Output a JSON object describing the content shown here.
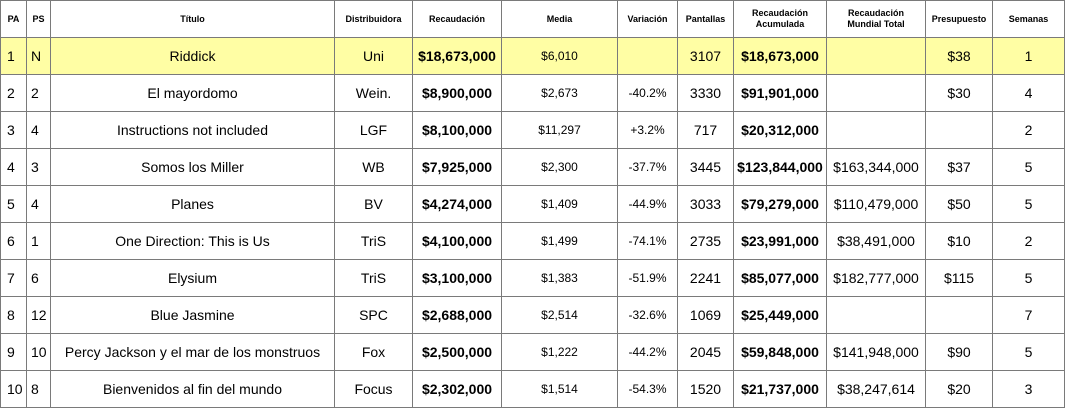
{
  "headers": {
    "pa": "PA",
    "ps": "PS",
    "titulo": "Título",
    "distribuidora": "Distribuidora",
    "recaudacion": "Recaudación",
    "media": "Media",
    "variacion": "Variación",
    "pantallas": "Pantallas",
    "acumulada_line1": "Recaudación",
    "acumulada_line2": "Acumulada",
    "mundial_line1": "Recaudación",
    "mundial_line2": "Mundial Total",
    "presupuesto": "Presupuesto",
    "semanas": "Semanas"
  },
  "rows": [
    {
      "pa": "1",
      "ps": "N",
      "titulo": "Riddick",
      "distribuidora": "Uni",
      "recaudacion": "$18,673,000",
      "media": "$6,010",
      "variacion": "",
      "pantallas": "3107",
      "acumulada": "$18,673,000",
      "mundial": "",
      "presupuesto": "$38",
      "semanas": "1"
    },
    {
      "pa": "2",
      "ps": "2",
      "titulo": "El mayordomo",
      "distribuidora": "Wein.",
      "recaudacion": "$8,900,000",
      "media": "$2,673",
      "variacion": "-40.2%",
      "pantallas": "3330",
      "acumulada": "$91,901,000",
      "mundial": "",
      "presupuesto": "$30",
      "semanas": "4"
    },
    {
      "pa": "3",
      "ps": "4",
      "titulo": "Instructions not included",
      "distribuidora": "LGF",
      "recaudacion": "$8,100,000",
      "media": "$11,297",
      "variacion": "+3.2%",
      "pantallas": "717",
      "acumulada": "$20,312,000",
      "mundial": "",
      "presupuesto": "",
      "semanas": "2"
    },
    {
      "pa": "4",
      "ps": "3",
      "titulo": "Somos los Miller",
      "distribuidora": "WB",
      "recaudacion": "$7,925,000",
      "media": "$2,300",
      "variacion": "-37.7%",
      "pantallas": "3445",
      "acumulada": "$123,844,000",
      "mundial": "$163,344,000",
      "presupuesto": "$37",
      "semanas": "5"
    },
    {
      "pa": "5",
      "ps": "4",
      "titulo": "Planes",
      "distribuidora": "BV",
      "recaudacion": "$4,274,000",
      "media": "$1,409",
      "variacion": "-44.9%",
      "pantallas": "3033",
      "acumulada": "$79,279,000",
      "mundial": "$110,479,000",
      "presupuesto": "$50",
      "semanas": "5"
    },
    {
      "pa": "6",
      "ps": "1",
      "titulo": "One Direction: This is Us",
      "distribuidora": "TriS",
      "recaudacion": "$4,100,000",
      "media": "$1,499",
      "variacion": "-74.1%",
      "pantallas": "2735",
      "acumulada": "$23,991,000",
      "mundial": "$38,491,000",
      "presupuesto": "$10",
      "semanas": "2"
    },
    {
      "pa": "7",
      "ps": "6",
      "titulo": "Elysium",
      "distribuidora": "TriS",
      "recaudacion": "$3,100,000",
      "media": "$1,383",
      "variacion": "-51.9%",
      "pantallas": "2241",
      "acumulada": "$85,077,000",
      "mundial": "$182,777,000",
      "presupuesto": "$115",
      "semanas": "5"
    },
    {
      "pa": "8",
      "ps": "12",
      "titulo": "Blue Jasmine",
      "distribuidora": "SPC",
      "recaudacion": "$2,688,000",
      "media": "$2,514",
      "variacion": "-32.6%",
      "pantallas": "1069",
      "acumulada": "$25,449,000",
      "mundial": "",
      "presupuesto": "",
      "semanas": "7"
    },
    {
      "pa": "9",
      "ps": "10",
      "titulo": "Percy Jackson y el mar de los monstruos",
      "distribuidora": "Fox",
      "recaudacion": "$2,500,000",
      "media": "$1,222",
      "variacion": "-44.2%",
      "pantallas": "2045",
      "acumulada": "$59,848,000",
      "mundial": "$141,948,000",
      "presupuesto": "$90",
      "semanas": "5"
    },
    {
      "pa": "10",
      "ps": "8",
      "titulo": "Bienvenidos al fin del mundo",
      "distribuidora": "Focus",
      "recaudacion": "$2,302,000",
      "media": "$1,514",
      "variacion": "-54.3%",
      "pantallas": "1520",
      "acumulada": "$21,737,000",
      "mundial": "$38,247,614",
      "presupuesto": "$20",
      "semanas": "3"
    }
  ]
}
